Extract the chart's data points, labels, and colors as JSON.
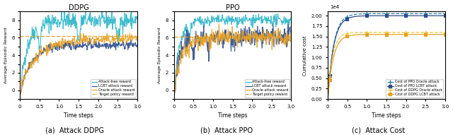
{
  "ddpg_title": "DDPG",
  "ppo_title": "PPO",
  "xlabel": "Time steps",
  "ylabel_reward": "Average Episodic Reward",
  "ylabel_cost": "Cumulative cost",
  "caption_a": "(a)  Attack DDPG",
  "caption_b": "(b)  Attack PPO",
  "caption_c": "(c)  Attack Cost",
  "xticks": [
    0,
    50000,
    100000,
    150000,
    200000,
    250000,
    300000
  ],
  "xtick_labels": [
    "0",
    "0.5",
    "1.0",
    "1.5",
    "2.0",
    "2.5",
    "3.0"
  ],
  "color_attackfree": "#29b5c9",
  "color_lcbt": "#2b4b8c",
  "color_oracle": "#e8a020",
  "color_target": "#e8a020",
  "seed": 42,
  "n_steps": 300
}
